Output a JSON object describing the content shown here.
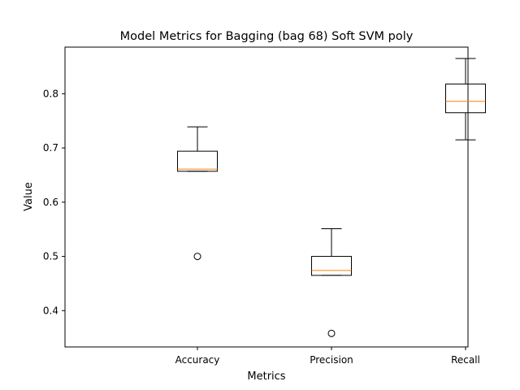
{
  "chart_data": {
    "type": "boxplot",
    "title": "Model Metrics for Bagging (bag 68) Soft SVM poly",
    "xlabel": "Metrics",
    "ylabel": "Value",
    "ylim": [
      0.333,
      0.886
    ],
    "yticks": [
      0.4,
      0.5,
      0.6,
      0.7,
      0.8
    ],
    "ytick_labels": [
      "0.4",
      "0.5",
      "0.6",
      "0.7",
      "0.8"
    ],
    "grid": false,
    "categories": [
      "Accuracy",
      "Precision",
      "Recall"
    ],
    "boxes": [
      {
        "name": "Accuracy",
        "whisker_low": 0.657,
        "q1": 0.657,
        "median": 0.661,
        "q3": 0.694,
        "whisker_high": 0.739,
        "outliers": [
          0.5
        ]
      },
      {
        "name": "Precision",
        "whisker_low": 0.465,
        "q1": 0.465,
        "median": 0.474,
        "q3": 0.5,
        "whisker_high": 0.551,
        "outliers": [
          0.358
        ]
      },
      {
        "name": "Recall",
        "whisker_low": 0.715,
        "q1": 0.765,
        "median": 0.786,
        "q3": 0.818,
        "whisker_high": 0.865,
        "outliers": []
      }
    ],
    "colors": {
      "box": "#000000",
      "median": "#ff7f0e",
      "outlier": "#000000"
    }
  }
}
